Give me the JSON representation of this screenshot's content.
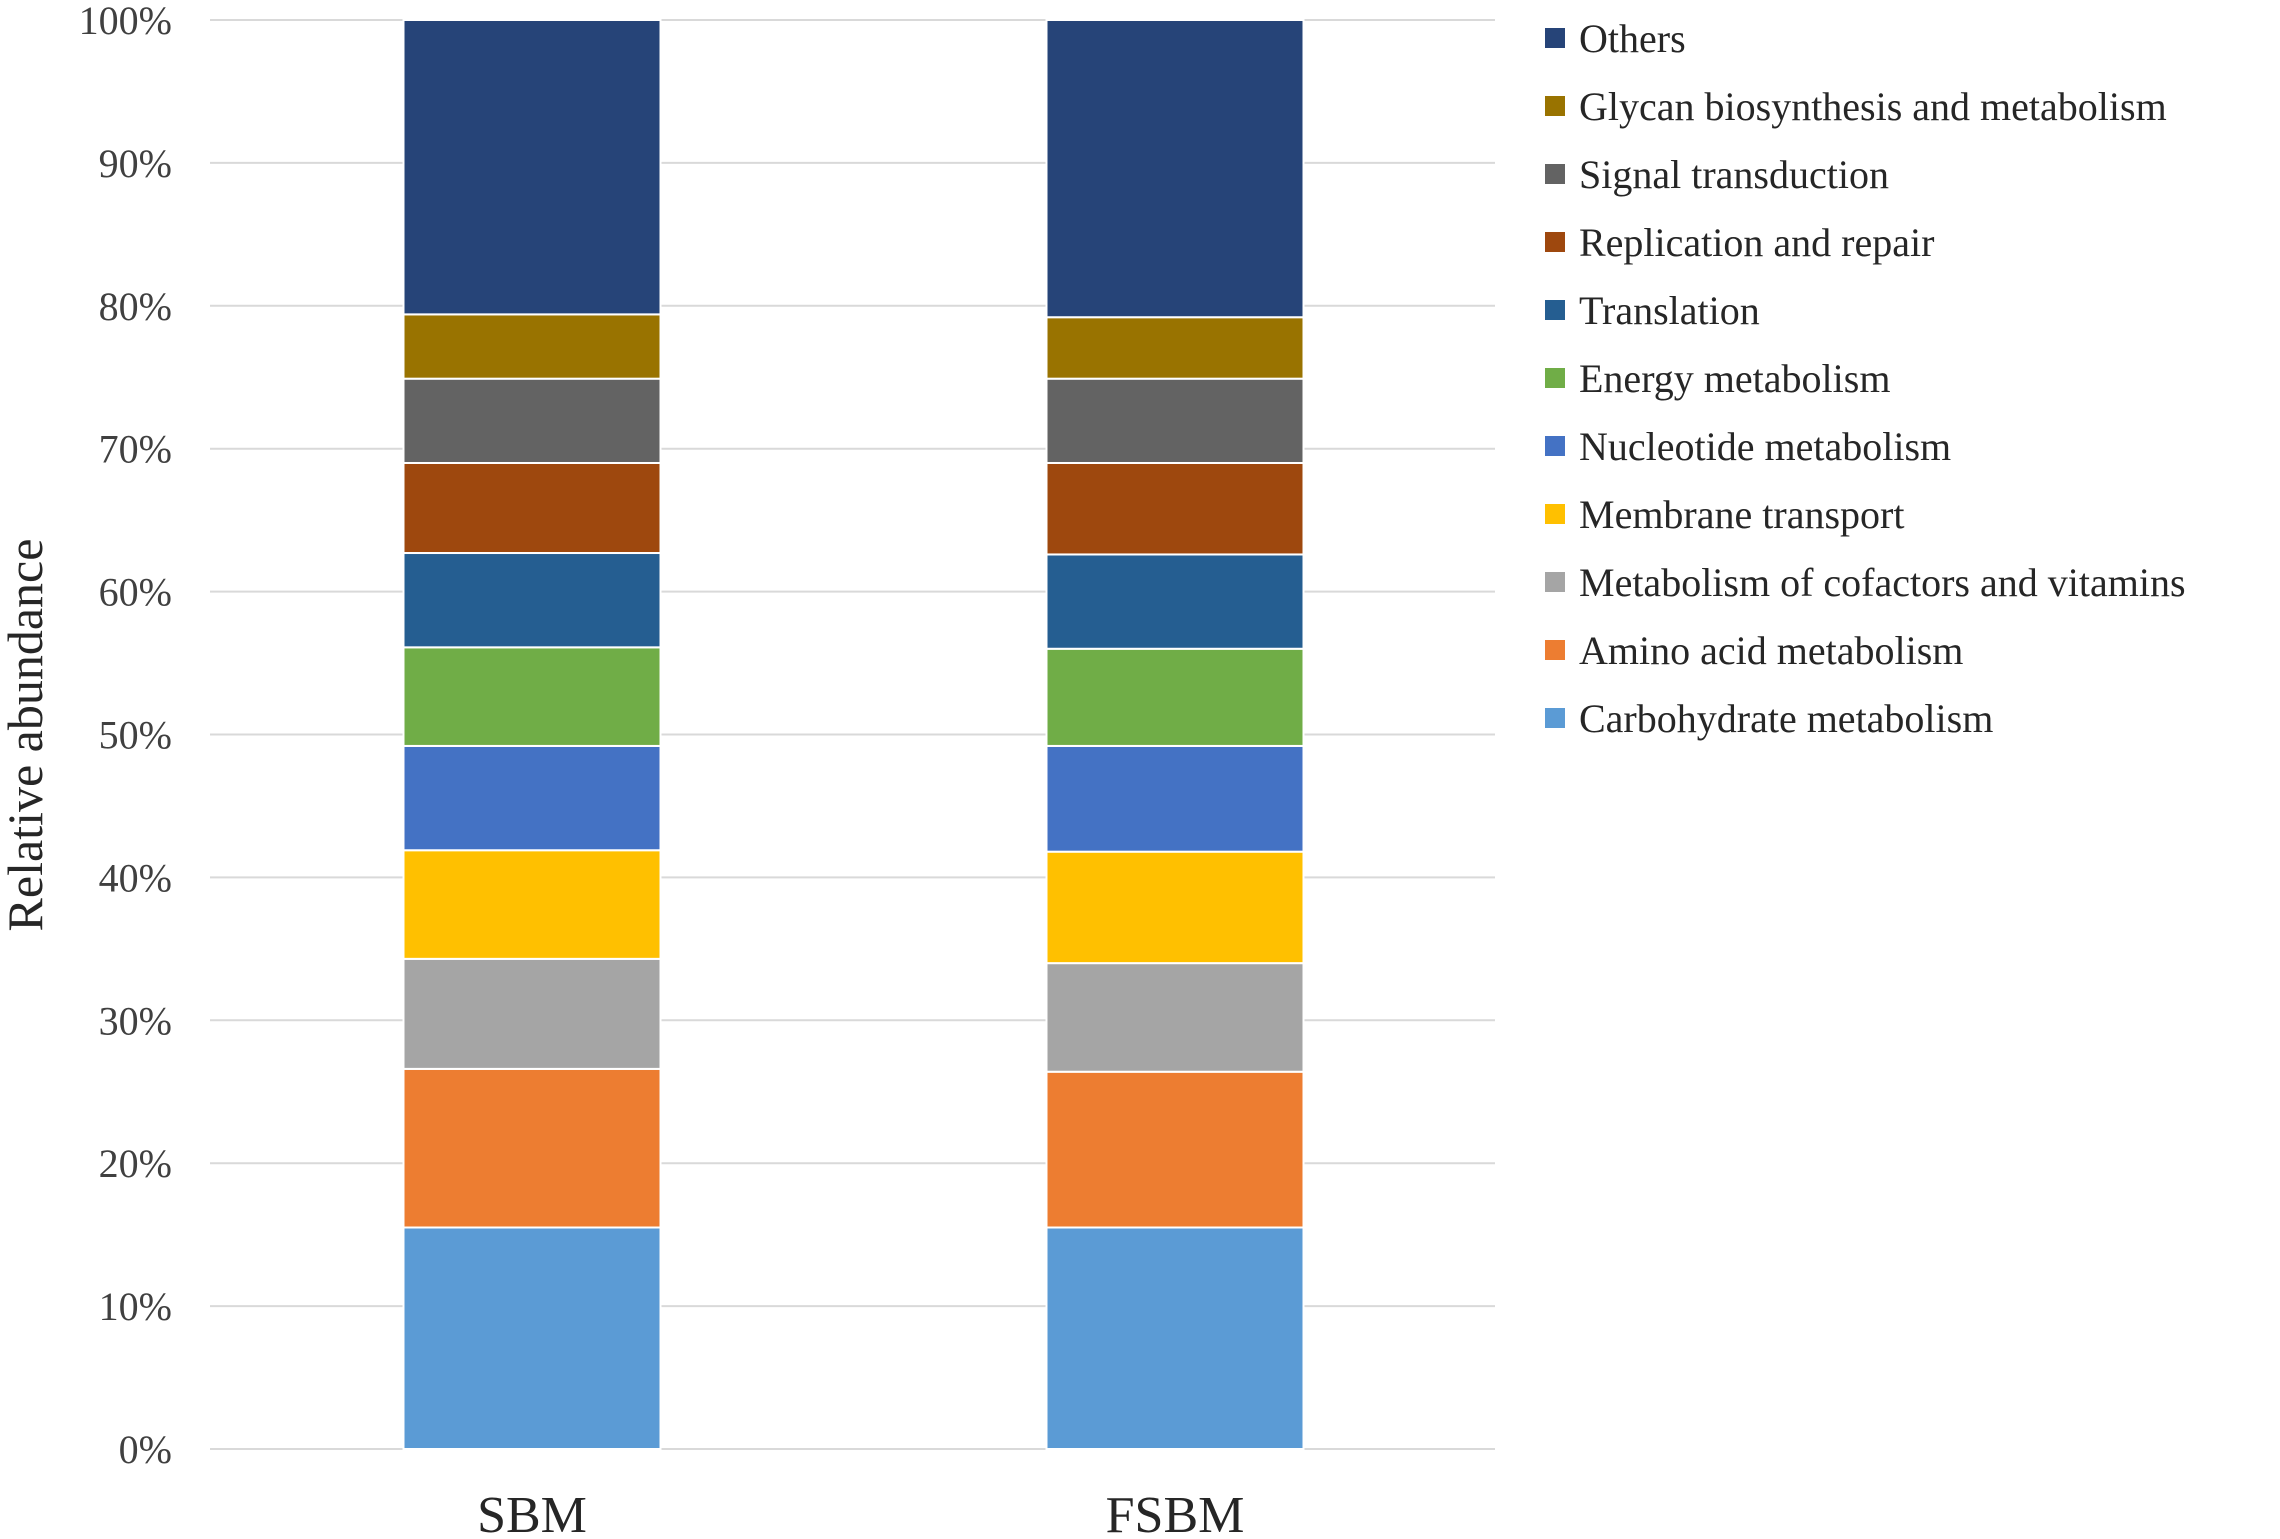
{
  "chart_data": {
    "type": "bar",
    "stacked": "percent",
    "title": "",
    "xlabel": "",
    "ylabel": "Relative abundance",
    "ylim": [
      0,
      100
    ],
    "yticks": [
      "0%",
      "10%",
      "20%",
      "30%",
      "40%",
      "50%",
      "60%",
      "70%",
      "80%",
      "90%",
      "100%"
    ],
    "categories": [
      "SBM",
      "FSBM"
    ],
    "grid": true,
    "legend_position": "right",
    "series": [
      {
        "name": "Carbohydrate metabolism",
        "color": "#5B9BD5",
        "values": [
          15.5,
          15.5
        ]
      },
      {
        "name": "Amino acid metabolism",
        "color": "#ED7D31",
        "values": [
          11.1,
          10.9
        ]
      },
      {
        "name": "Metabolism of cofactors and vitamins",
        "color": "#A5A5A5",
        "values": [
          7.7,
          7.6
        ]
      },
      {
        "name": "Membrane transport",
        "color": "#FFC000",
        "values": [
          7.6,
          7.8
        ]
      },
      {
        "name": "Nucleotide metabolism",
        "color": "#4472C4",
        "values": [
          7.3,
          7.4
        ]
      },
      {
        "name": "Energy metabolism",
        "color": "#70AD47",
        "values": [
          6.9,
          6.8
        ]
      },
      {
        "name": "Translation",
        "color": "#255E91",
        "values": [
          6.6,
          6.6
        ]
      },
      {
        "name": "Replication and repair",
        "color": "#9E480E",
        "values": [
          6.3,
          6.4
        ]
      },
      {
        "name": "Signal transduction",
        "color": "#636363",
        "values": [
          5.9,
          5.9
        ]
      },
      {
        "name": "Glycan biosynthesis and metabolism",
        "color": "#997300",
        "values": [
          4.5,
          4.3
        ]
      },
      {
        "name": "Others",
        "color": "#264478",
        "values": [
          20.6,
          20.8
        ]
      }
    ]
  }
}
